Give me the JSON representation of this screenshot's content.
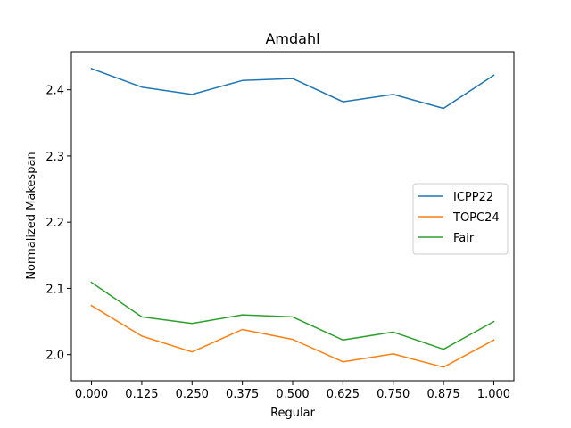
{
  "chart_data": {
    "type": "line",
    "title": "Amdahl",
    "xlabel": "Regular",
    "ylabel": "Normalized Makespan",
    "x": [
      0.0,
      0.125,
      0.25,
      0.375,
      0.5,
      0.625,
      0.75,
      0.875,
      1.0
    ],
    "x_tick_labels": [
      "0.000",
      "0.125",
      "0.250",
      "0.375",
      "0.500",
      "0.625",
      "0.750",
      "0.875",
      "1.000"
    ],
    "y_ticks": [
      2.0,
      2.1,
      2.2,
      2.3,
      2.4
    ],
    "y_tick_labels": [
      "2.0",
      "2.1",
      "2.2",
      "2.3",
      "2.4"
    ],
    "xlim": [
      -0.05,
      1.05
    ],
    "ylim": [
      1.9605,
      2.4575
    ],
    "grid": false,
    "legend_position": "center-right",
    "series": [
      {
        "name": "ICPP22",
        "color": "#1f77b4",
        "values": [
          2.432,
          2.404,
          2.393,
          2.414,
          2.417,
          2.382,
          2.393,
          2.372,
          2.422
        ]
      },
      {
        "name": "TOPC24",
        "color": "#ff7f0e",
        "values": [
          2.074,
          2.028,
          2.004,
          2.038,
          2.023,
          1.989,
          2.001,
          1.981,
          2.022
        ]
      },
      {
        "name": "Fair",
        "color": "#2ca02c",
        "values": [
          2.109,
          2.057,
          2.047,
          2.06,
          2.057,
          2.022,
          2.034,
          2.008,
          2.05
        ]
      }
    ]
  }
}
